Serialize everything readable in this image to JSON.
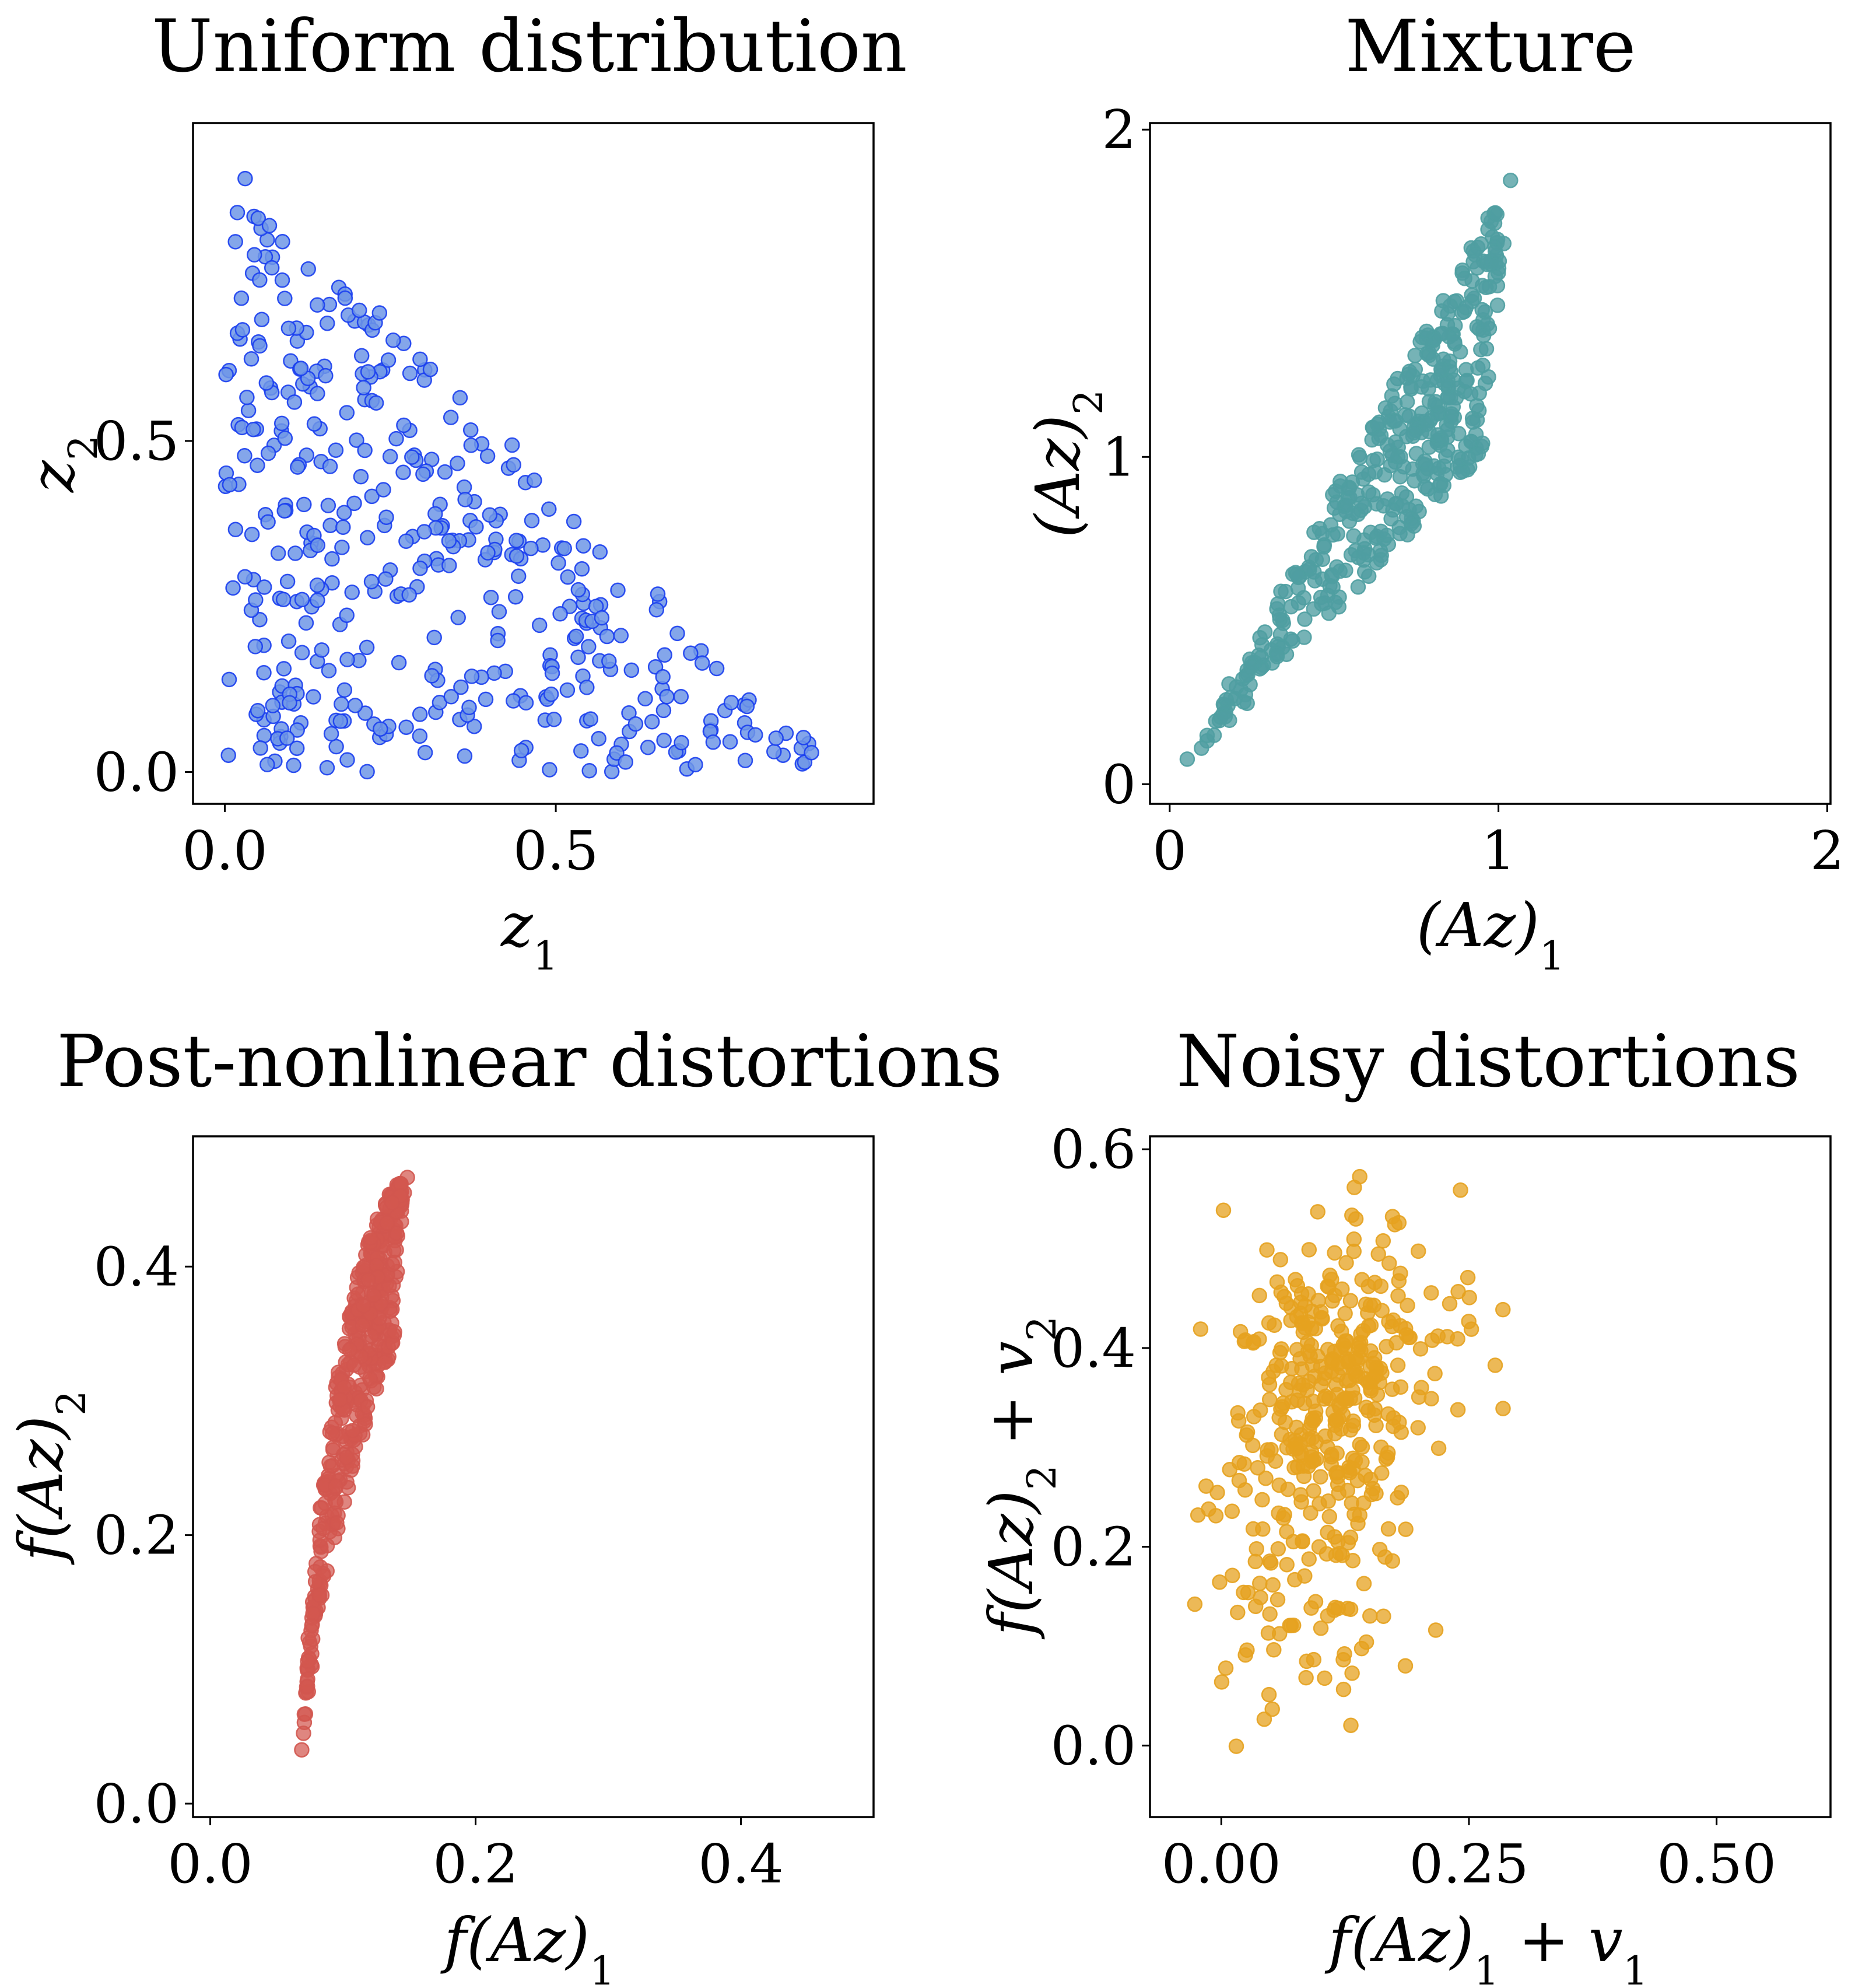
{
  "chart_data": [
    {
      "type": "scatter",
      "title": "Uniform distribution",
      "xlabel": "z₁",
      "ylabel": "z₂",
      "xlim": [
        -0.048,
        0.98
      ],
      "ylim": [
        -0.048,
        0.98
      ],
      "xticks": [
        {
          "v": 0.0,
          "label": "0.0"
        },
        {
          "v": 0.5,
          "label": "0.5"
        }
      ],
      "yticks": [
        {
          "v": 0.0,
          "label": "0.0"
        },
        {
          "v": 0.5,
          "label": "0.5"
        }
      ],
      "grid": false,
      "marker": {
        "fill": "#6e96e6",
        "stroke": "#1a3ef0",
        "fill_opacity": 0.85
      },
      "generator": {
        "kind": "triangle",
        "count": 430,
        "seed": 11,
        "noise": 0,
        "max": 0.93
      },
      "series": [
        {
          "name": "",
          "color": "#1a3ef0"
        }
      ]
    },
    {
      "type": "scatter",
      "title": "Mixture",
      "xlabel": "(Az)₁",
      "ylabel": "(Az)₂",
      "xlim": [
        -0.06,
        2.01
      ],
      "ylim": [
        -0.06,
        2.02
      ],
      "xticks": [
        {
          "v": 0,
          "label": "0"
        },
        {
          "v": 1,
          "label": "1"
        },
        {
          "v": 2,
          "label": "2"
        }
      ],
      "yticks": [
        {
          "v": 0,
          "label": "0"
        },
        {
          "v": 1,
          "label": "1"
        },
        {
          "v": 2,
          "label": "2"
        }
      ],
      "grid": false,
      "marker": {
        "fill": "#4f9ea1",
        "stroke": "#4f9ea1",
        "fill_opacity": 0.78
      },
      "generator": {
        "kind": "mixture",
        "count": 430,
        "seed": 11
      },
      "series": [
        {
          "name": "",
          "color": "#4f9ea1"
        }
      ]
    },
    {
      "type": "scatter",
      "title": "Post-nonlinear distortions",
      "xlabel": "f(Az)₁",
      "ylabel": "f(Az)₂",
      "xlim": [
        -0.013,
        0.5
      ],
      "ylim": [
        -0.01,
        0.497
      ],
      "xticks": [
        {
          "v": 0.0,
          "label": "0.0"
        },
        {
          "v": 0.2,
          "label": "0.2"
        },
        {
          "v": 0.4,
          "label": "0.4"
        }
      ],
      "yticks": [
        {
          "v": 0.0,
          "label": "0.0"
        },
        {
          "v": 0.2,
          "label": "0.2"
        },
        {
          "v": 0.4,
          "label": "0.4"
        }
      ],
      "grid": false,
      "marker": {
        "fill": "#d2574f",
        "stroke": "#d2574f",
        "fill_opacity": 0.72
      },
      "generator": {
        "kind": "postnonlinear",
        "count": 430,
        "seed": 11
      },
      "series": [
        {
          "name": "",
          "color": "#d2574f"
        }
      ]
    },
    {
      "type": "scatter",
      "title": "Noisy distortions",
      "xlabel": "f(Az)₁ + v₁",
      "ylabel": "f(Az)₂ + v₂",
      "xlim": [
        -0.072,
        0.615
      ],
      "ylim": [
        -0.072,
        0.613
      ],
      "xticks": [
        {
          "v": 0.0,
          "label": "0.00"
        },
        {
          "v": 0.25,
          "label": "0.25"
        },
        {
          "v": 0.5,
          "label": "0.50"
        }
      ],
      "yticks": [
        {
          "v": 0.0,
          "label": "0.0"
        },
        {
          "v": 0.2,
          "label": "0.2"
        },
        {
          "v": 0.4,
          "label": "0.4"
        },
        {
          "v": 0.6,
          "label": "0.6"
        }
      ],
      "grid": false,
      "marker": {
        "fill": "#e6a21f",
        "stroke": "#e6a21f",
        "fill_opacity": 0.75
      },
      "generator": {
        "kind": "noisy",
        "count": 430,
        "seed": 11,
        "noise": 0.05
      },
      "series": [
        {
          "name": "",
          "color": "#e6a21f"
        }
      ]
    }
  ]
}
